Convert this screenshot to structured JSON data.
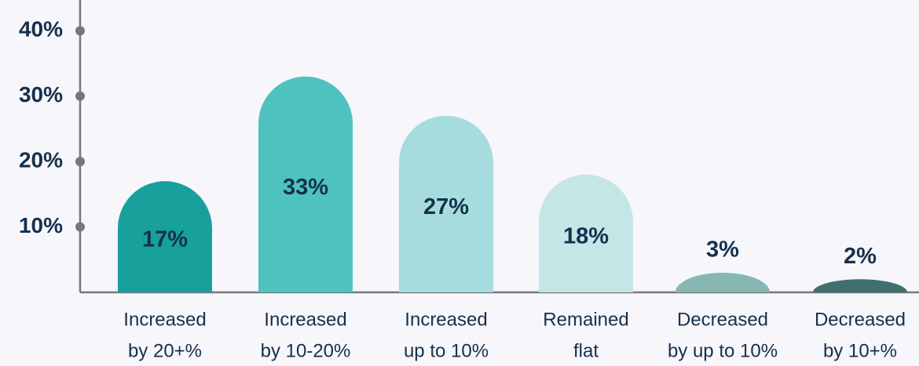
{
  "chart_data": {
    "type": "bar",
    "categories": [
      [
        "Increased",
        "by 20+%"
      ],
      [
        "Increased",
        "by 10-20%"
      ],
      [
        "Increased",
        "up to 10%"
      ],
      [
        "Remained",
        "flat"
      ],
      [
        "Decreased",
        "by up to 10%"
      ],
      [
        "Decreased",
        "by 10+%"
      ]
    ],
    "values": [
      17,
      33,
      27,
      18,
      3,
      2
    ],
    "value_labels": [
      "17%",
      "33%",
      "27%",
      "18%",
      "3%",
      "2%"
    ],
    "colors": [
      "#17a09c",
      "#4ec2be",
      "#a6dcdd",
      "#c4e6e7",
      "#86b7b3",
      "#3f706d"
    ],
    "ylim": [
      0,
      44.7
    ],
    "yticks": [
      {
        "value": 10,
        "label": "10%"
      },
      {
        "value": 20,
        "label": "20%"
      },
      {
        "value": 30,
        "label": "30%"
      },
      {
        "value": 40,
        "label": "40%"
      }
    ]
  }
}
